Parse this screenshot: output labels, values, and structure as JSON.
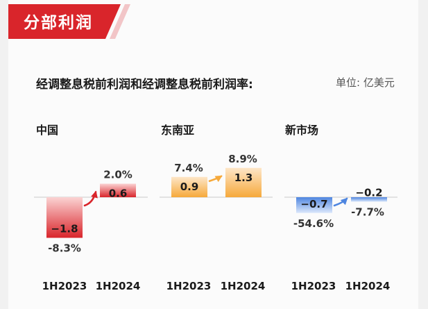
{
  "header": {
    "banner_title": "分部利润",
    "subtitle": "经调整息税前利润和经调整息税前利润率:",
    "unit": "单位: 亿美元"
  },
  "chart_data": [
    {
      "type": "bar",
      "title": "中国",
      "categories": [
        "1H2023",
        "1H2024"
      ],
      "values": [
        -1.8,
        0.6
      ],
      "margins": [
        "-8.3%",
        "2.0%"
      ],
      "colors": {
        "top": "#fbd3d3",
        "bottom": "#d9252b"
      }
    },
    {
      "type": "bar",
      "title": "东南亚",
      "categories": [
        "1H2023",
        "1H2024"
      ],
      "values": [
        0.9,
        1.3
      ],
      "margins": [
        "7.4%",
        "8.9%"
      ],
      "colors": {
        "top": "#fde6c8",
        "bottom": "#f6a93b"
      }
    },
    {
      "type": "bar",
      "title": "新市场",
      "categories": [
        "1H2023",
        "1H2024"
      ],
      "values": [
        -0.7,
        -0.2
      ],
      "margins": [
        "-54.6%",
        "-7.7%"
      ],
      "colors": {
        "top": "#4f86e0",
        "bottom": "#dce8fb"
      }
    }
  ],
  "theme": {
    "accent_red": "#d9252b",
    "orange": "#f6a93b",
    "blue": "#4f86e0",
    "arrow_red": "#d9252b",
    "arrow_orange": "#f6a93b",
    "arrow_blue": "#4f86e0"
  }
}
